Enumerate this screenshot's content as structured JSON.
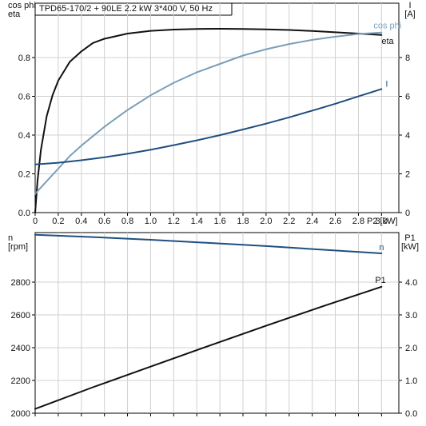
{
  "title": "TPD65-170/2 + 90LE   2.2 kW   3*400 V, 50 Hz",
  "chart_data": [
    {
      "type": "line",
      "x_label": "P2 [kW]",
      "x_ticks": [
        "0",
        "0.2",
        "0.4",
        "0.6",
        "0.8",
        "1.0",
        "1.2",
        "1.4",
        "1.6",
        "1.8",
        "2.0",
        "2.2",
        "2.4",
        "2.6",
        "2.8",
        "3.0"
      ],
      "xlim": [
        0,
        3.15
      ],
      "left_axis": {
        "label_line1": "cos phi",
        "label_line2": "eta",
        "ylim": [
          0,
          1.0
        ],
        "ticks": [
          "0.0",
          "0.2",
          "0.4",
          "0.6",
          "0.8"
        ]
      },
      "right_axis": {
        "label_line1": "I",
        "label_line2": "[A]",
        "ylim": [
          0,
          10
        ],
        "ticks": [
          "0",
          "2",
          "4",
          "6",
          "8"
        ]
      },
      "series": [
        {
          "name": "eta",
          "axis": "left",
          "color": "#111111",
          "x": [
            0,
            0.02,
            0.05,
            0.1,
            0.15,
            0.2,
            0.3,
            0.4,
            0.5,
            0.6,
            0.8,
            1.0,
            1.2,
            1.4,
            1.6,
            1.8,
            2.0,
            2.2,
            2.4,
            2.6,
            2.8,
            3.0
          ],
          "y": [
            0.0,
            0.15,
            0.3,
            0.46,
            0.56,
            0.63,
            0.72,
            0.77,
            0.81,
            0.83,
            0.855,
            0.868,
            0.874,
            0.877,
            0.878,
            0.877,
            0.875,
            0.872,
            0.867,
            0.861,
            0.855,
            0.848
          ]
        },
        {
          "name": "cos phi",
          "axis": "left",
          "color": "#7a9fba",
          "x": [
            0,
            0.1,
            0.2,
            0.3,
            0.4,
            0.6,
            0.8,
            1.0,
            1.2,
            1.4,
            1.6,
            1.8,
            2.0,
            2.2,
            2.4,
            2.6,
            2.8,
            3.0
          ],
          "y": [
            0.09,
            0.15,
            0.21,
            0.27,
            0.32,
            0.41,
            0.49,
            0.56,
            0.62,
            0.67,
            0.71,
            0.75,
            0.78,
            0.805,
            0.825,
            0.84,
            0.853,
            0.86
          ]
        },
        {
          "name": "I",
          "axis": "right",
          "color": "#1f4f80",
          "x": [
            0,
            0.2,
            0.4,
            0.6,
            0.8,
            1.0,
            1.2,
            1.4,
            1.6,
            1.8,
            2.0,
            2.2,
            2.4,
            2.6,
            2.8,
            3.0
          ],
          "y": [
            2.3,
            2.38,
            2.5,
            2.64,
            2.81,
            3.0,
            3.22,
            3.45,
            3.7,
            3.97,
            4.25,
            4.55,
            4.87,
            5.2,
            5.55,
            5.9
          ]
        }
      ]
    },
    {
      "type": "line",
      "xlim": [
        0,
        3.15
      ],
      "left_axis": {
        "label_line1": "n",
        "label_line2": "[rpm]",
        "ylim": [
          2000,
          3000
        ],
        "ticks": [
          "2000",
          "2200",
          "2400",
          "2600",
          "2800"
        ]
      },
      "right_axis": {
        "label_line1": "P1",
        "label_line2": "[kW]",
        "ylim": [
          0,
          5
        ],
        "ticks": [
          "0.0",
          "1.0",
          "2.0",
          "3.0",
          "4.0"
        ]
      },
      "series": [
        {
          "name": "n",
          "axis": "left",
          "color": "#1f4f80",
          "x": [
            0,
            0.5,
            1.0,
            1.5,
            2.0,
            2.5,
            3.0
          ],
          "y": [
            2988,
            2975,
            2960,
            2943,
            2925,
            2905,
            2885
          ]
        },
        {
          "name": "P1",
          "axis": "right",
          "color": "#111111",
          "x": [
            0,
            0.5,
            1.0,
            1.5,
            2.0,
            2.5,
            3.0
          ],
          "y": [
            0.12,
            0.72,
            1.29,
            1.86,
            2.42,
            2.97,
            3.5
          ]
        }
      ]
    }
  ]
}
